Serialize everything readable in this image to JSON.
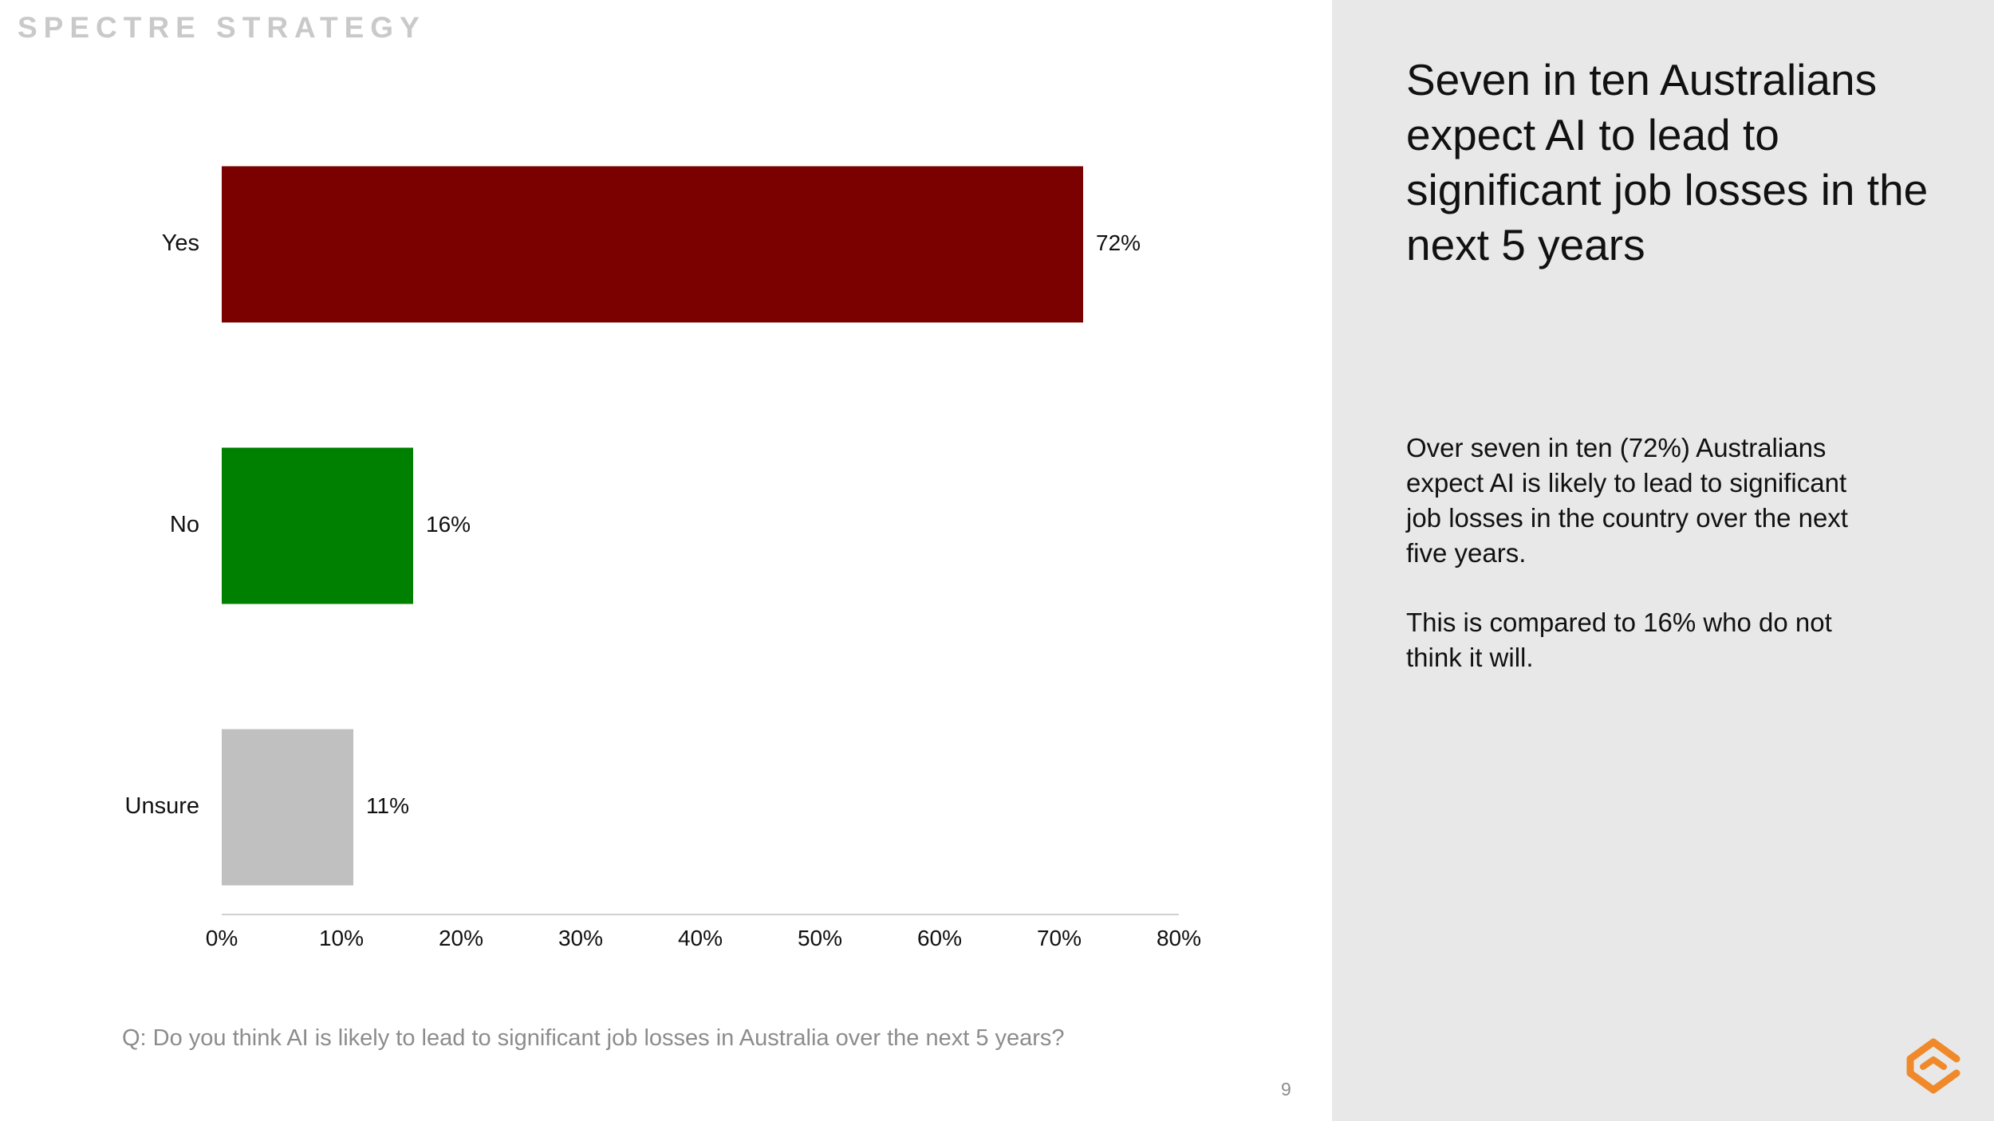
{
  "brand": "SPECTRE STRATEGY",
  "page_number": "9",
  "question": "Q: Do you think AI is likely to lead to significant job losses in Australia over the next 5 years?",
  "side_panel": {
    "headline": "Seven in ten Australians expect AI to lead to significant job losses in the next 5 years",
    "paragraphs": [
      "Over seven in ten (72%) Australians expect AI is likely to lead to significant job losses in the country over the next five years.",
      "This is compared to 16% who do not think it will."
    ]
  },
  "logo_icon": "spectre-logo-icon",
  "colors": {
    "accent": "#f0892a",
    "side_panel_bg": "#e8e8e8"
  },
  "chart_data": {
    "type": "bar",
    "orientation": "horizontal",
    "categories": [
      "Yes",
      "No",
      "Unsure"
    ],
    "values": [
      72,
      16,
      11
    ],
    "value_labels": [
      "72%",
      "16%",
      "11%"
    ],
    "bar_colors": [
      "#7b0000",
      "#008000",
      "#c0c0c0"
    ],
    "xlim": [
      0,
      80
    ],
    "x_ticks": [
      0,
      10,
      20,
      30,
      40,
      50,
      60,
      70,
      80
    ],
    "x_tick_labels": [
      "0%",
      "10%",
      "20%",
      "30%",
      "40%",
      "50%",
      "60%",
      "70%",
      "80%"
    ],
    "grid": false,
    "legend": "none"
  }
}
